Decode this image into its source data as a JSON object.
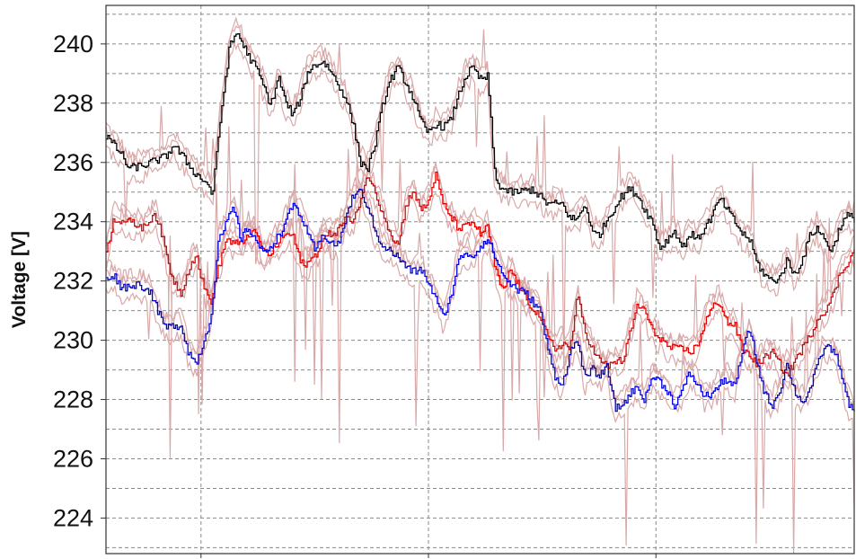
{
  "chart_data": {
    "type": "line",
    "title": "",
    "ylabel": "Voltage [V]",
    "xlabel": "",
    "ylim": [
      222.8,
      241.3
    ],
    "xlim": [
      0,
      100
    ],
    "yticks": [
      224,
      226,
      228,
      230,
      232,
      234,
      236,
      238,
      240
    ],
    "ytick_labels": [
      "224",
      "226",
      "228",
      "230",
      "232",
      "234",
      "236",
      "238",
      "240"
    ],
    "y_minor_gridlines": [
      223,
      225,
      227,
      229,
      231,
      233,
      235,
      237,
      239,
      241
    ],
    "x_gridlines": [
      12.7,
      43.1,
      73.5
    ],
    "grid": true,
    "legend": "none",
    "series": [
      {
        "color": "#000000",
        "x": [
          0,
          2,
          3,
          5,
          8,
          9,
          12,
          13.5,
          14.2,
          15.5,
          16.5,
          17.5,
          19,
          20,
          21,
          22,
          23,
          24,
          25,
          26,
          27,
          28,
          29,
          30,
          31,
          32,
          33,
          34,
          35,
          36,
          37,
          38,
          39,
          40,
          41,
          42,
          43,
          44,
          45,
          46,
          47,
          48,
          49,
          50,
          51,
          52,
          53,
          54,
          55,
          57,
          59,
          61,
          62,
          63,
          64,
          65,
          66,
          67,
          68,
          69,
          70,
          71,
          72,
          73,
          74,
          75,
          76,
          77,
          78,
          79,
          80,
          81,
          82,
          83,
          84,
          85,
          86,
          87,
          88,
          89,
          90,
          91,
          92,
          93,
          94,
          95,
          96,
          97,
          98,
          99,
          100
        ],
        "values": [
          236.9,
          236.3,
          235.8,
          235.9,
          236.2,
          236.6,
          235.6,
          235.3,
          234.9,
          238.0,
          239.9,
          240.4,
          239.6,
          239.2,
          238.6,
          237.9,
          238.9,
          238.0,
          237.6,
          238.2,
          239.1,
          239.3,
          239.4,
          239.1,
          238.6,
          238.2,
          237.3,
          236.0,
          235.8,
          236.7,
          238.0,
          238.8,
          239.2,
          238.7,
          238.2,
          237.4,
          237.0,
          237.3,
          237.2,
          237.4,
          238.2,
          238.9,
          239.2,
          238.8,
          238.9,
          235.4,
          235.1,
          235.0,
          235.0,
          235.1,
          234.6,
          234.6,
          234.1,
          234.1,
          234.6,
          233.6,
          233.6,
          234.1,
          234.5,
          234.9,
          235.1,
          234.9,
          234.4,
          234.0,
          233.1,
          233.4,
          233.7,
          233.1,
          233.6,
          233.4,
          233.8,
          234.2,
          234.8,
          234.4,
          234.0,
          233.6,
          233.4,
          232.6,
          232.2,
          232.0,
          232.1,
          232.7,
          232.2,
          232.7,
          233.5,
          233.8,
          233.4,
          233.0,
          233.8,
          234.2,
          234.1
        ]
      },
      {
        "color": "#e00000",
        "x": [
          0,
          1,
          3,
          5,
          6.5,
          7.5,
          8.5,
          9,
          10,
          11,
          12,
          13,
          14,
          15,
          16,
          17,
          18,
          19,
          20,
          21,
          22,
          23,
          24,
          25,
          26,
          27,
          28,
          29,
          30,
          31,
          32,
          33,
          34,
          35,
          36,
          37,
          38,
          39,
          40,
          41,
          42,
          43,
          44,
          45,
          46,
          47,
          48,
          49,
          50,
          51,
          52,
          53,
          54,
          55,
          56,
          57,
          58,
          59,
          60,
          61,
          62,
          63,
          64,
          65,
          66,
          67,
          68,
          69,
          70,
          71,
          72,
          73,
          74,
          75,
          76,
          77,
          78,
          79,
          80,
          81,
          82,
          83,
          84,
          85,
          86,
          87,
          88,
          89,
          90,
          91,
          92,
          93,
          94,
          95,
          96,
          97,
          98,
          99,
          100
        ],
        "values": [
          232.9,
          234.1,
          234.0,
          233.8,
          234.3,
          233.5,
          232.4,
          232.0,
          231.6,
          232.4,
          232.9,
          231.8,
          231.3,
          232.4,
          233.4,
          233.3,
          233.2,
          233.6,
          233.6,
          233.0,
          232.9,
          233.3,
          233.6,
          233.5,
          232.6,
          232.6,
          232.9,
          233.4,
          233.6,
          233.7,
          234.2,
          233.9,
          234.8,
          235.6,
          234.9,
          234.3,
          233.6,
          233.2,
          234.5,
          235.1,
          234.4,
          234.6,
          235.6,
          234.6,
          234.2,
          233.8,
          233.8,
          234.0,
          233.6,
          233.8,
          232.4,
          231.6,
          232.4,
          231.9,
          231.4,
          231.1,
          230.8,
          230.1,
          229.7,
          229.9,
          229.7,
          231.5,
          230.3,
          229.7,
          229.3,
          229.1,
          229.3,
          229.3,
          230.2,
          231.2,
          231.0,
          230.3,
          230.1,
          229.8,
          229.7,
          229.7,
          229.6,
          229.8,
          230.6,
          231.1,
          231.3,
          230.6,
          230.5,
          229.7,
          229.5,
          229.2,
          229.4,
          229.6,
          229.2,
          228.8,
          229.3,
          229.7,
          230.1,
          230.7,
          231.0,
          231.4,
          232.2,
          232.6,
          233.0
        ]
      },
      {
        "color": "#0000e0",
        "x": [
          0,
          1,
          2,
          3,
          4,
          5,
          6,
          7,
          8,
          9,
          10,
          11,
          12,
          13,
          14,
          15,
          16,
          17,
          18,
          19,
          20,
          21,
          22,
          23,
          24,
          25,
          26,
          27,
          28,
          29,
          30,
          31,
          32,
          33,
          34,
          35,
          36,
          37,
          38,
          39,
          40,
          41,
          42,
          43,
          44,
          45,
          46,
          47,
          48,
          49,
          50,
          51,
          52,
          53,
          54,
          55,
          56,
          57,
          58,
          59,
          60,
          61,
          62,
          63,
          64,
          65,
          66,
          67,
          68,
          69,
          70,
          71,
          72,
          73,
          74,
          75,
          76,
          77,
          78,
          79,
          80,
          81,
          82,
          83,
          84,
          85,
          86,
          87,
          88,
          89,
          90,
          91,
          92,
          93,
          94,
          95,
          96,
          97,
          98,
          99,
          100
        ],
        "values": [
          232.1,
          232.2,
          231.8,
          231.8,
          231.9,
          231.8,
          231.6,
          230.9,
          230.4,
          230.5,
          230.5,
          229.6,
          229.2,
          229.9,
          230.8,
          233.3,
          233.9,
          234.5,
          233.4,
          233.8,
          233.4,
          232.9,
          233.2,
          233.5,
          234.0,
          234.6,
          234.2,
          233.5,
          233.0,
          233.6,
          233.3,
          233.2,
          234.1,
          234.9,
          235.0,
          234.5,
          233.6,
          233.2,
          233.0,
          232.8,
          232.5,
          232.3,
          232.4,
          232.0,
          231.4,
          230.8,
          231.4,
          232.6,
          233.0,
          232.8,
          233.2,
          233.4,
          232.8,
          232.2,
          231.9,
          231.7,
          231.6,
          231.3,
          231.0,
          229.7,
          228.8,
          228.5,
          229.6,
          230.0,
          228.7,
          229.0,
          228.8,
          229.1,
          227.7,
          227.8,
          228.2,
          228.4,
          228.0,
          228.8,
          228.6,
          228.3,
          227.8,
          228.3,
          228.9,
          228.5,
          228.1,
          228.2,
          228.5,
          228.7,
          228.4,
          229.6,
          230.4,
          229.2,
          228.2,
          227.8,
          228.3,
          229.2,
          228.3,
          227.9,
          228.3,
          229.1,
          229.8,
          229.7,
          229.2,
          228.0,
          227.5
        ]
      }
    ]
  }
}
